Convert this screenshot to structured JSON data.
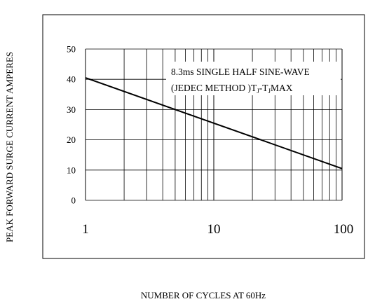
{
  "chart_data": {
    "type": "line",
    "xlabel": "NUMBER OF CYCLES AT 60Hz",
    "ylabel": "PEAK FORWARD SURGE CURRENT AMPERES",
    "x_scale": "log",
    "xlim": [
      1,
      100
    ],
    "ylim": [
      0,
      50
    ],
    "x_ticks": [
      1,
      10,
      100
    ],
    "x_tick_labels": [
      "1",
      "10",
      "100"
    ],
    "y_ticks": [
      0,
      10,
      20,
      30,
      40,
      50
    ],
    "y_tick_labels": [
      "0",
      "10",
      "20",
      "30",
      "40",
      "50"
    ],
    "grid": true,
    "series": [
      {
        "x": [
          1,
          100
        ],
        "y": [
          40.5,
          10.5
        ]
      }
    ],
    "annotation": {
      "line1": "8.3ms SINGLE HALF SINE-WAVE",
      "line2_prefix": "(JEDEC METHOD )T",
      "sub1": "J",
      "dash": "-T",
      "sub2": "J",
      "suffix": "MAX"
    }
  }
}
